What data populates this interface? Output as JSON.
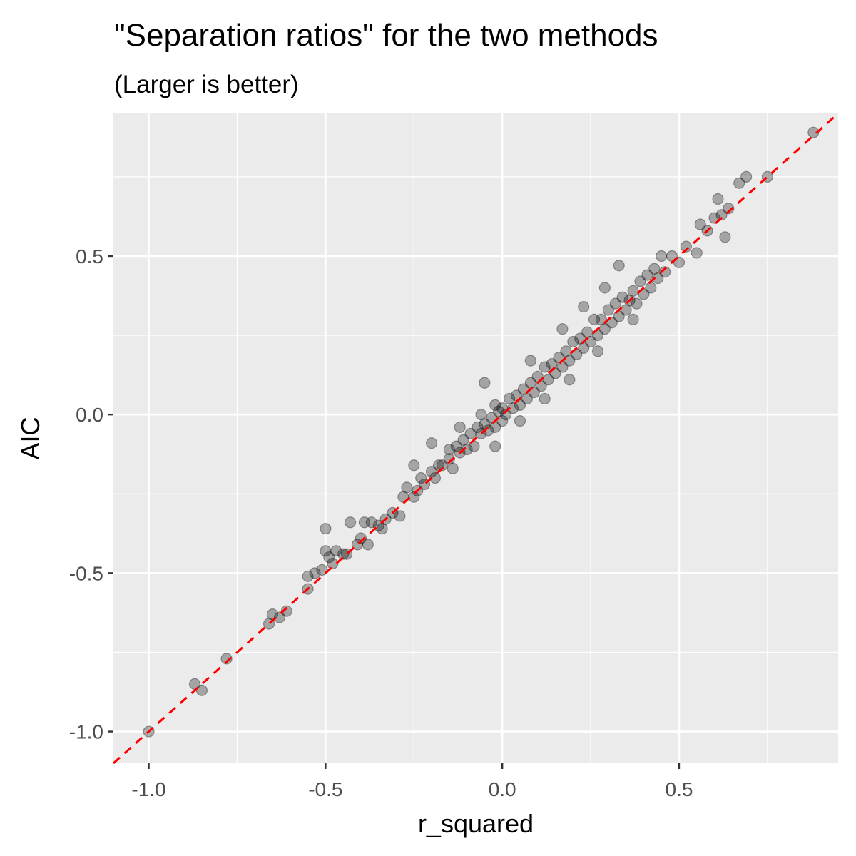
{
  "chart_data": {
    "type": "scatter",
    "title": "\"Separation ratios\" for the two methods",
    "subtitle": "(Larger is better)",
    "xlabel": "r_squared",
    "ylabel": "AIC",
    "xlim": [
      -1.1,
      0.95
    ],
    "ylim": [
      -1.1,
      0.95
    ],
    "x_ticks": [
      -1.0,
      -0.5,
      0.0,
      0.5
    ],
    "x_tick_labels": [
      "-1.0",
      "-0.5",
      "0.0",
      "0.5"
    ],
    "y_ticks": [
      -1.0,
      -0.5,
      0.0,
      0.5
    ],
    "y_tick_labels": [
      "-1.0",
      "-0.5",
      "0.0",
      "0.5"
    ],
    "x_minor": [
      -0.75,
      -0.25,
      0.25,
      0.75
    ],
    "y_minor": [
      -0.75,
      -0.25,
      0.25,
      0.75
    ],
    "grid": true,
    "reference_line": {
      "slope": 1,
      "intercept": 0,
      "style": "dashed",
      "color": "#ff0000"
    },
    "point_color": "#000000",
    "point_alpha": 0.3,
    "panel_background": "#ebebeb",
    "series": [
      {
        "name": "separation ratios",
        "points": [
          [
            -1.0,
            -1.0
          ],
          [
            -0.87,
            -0.85
          ],
          [
            -0.85,
            -0.87
          ],
          [
            -0.78,
            -0.77
          ],
          [
            -0.66,
            -0.66
          ],
          [
            -0.65,
            -0.63
          ],
          [
            -0.63,
            -0.64
          ],
          [
            -0.61,
            -0.62
          ],
          [
            -0.55,
            -0.55
          ],
          [
            -0.55,
            -0.51
          ],
          [
            -0.53,
            -0.5
          ],
          [
            -0.51,
            -0.49
          ],
          [
            -0.5,
            -0.36
          ],
          [
            -0.5,
            -0.43
          ],
          [
            -0.49,
            -0.45
          ],
          [
            -0.48,
            -0.47
          ],
          [
            -0.47,
            -0.43
          ],
          [
            -0.45,
            -0.44
          ],
          [
            -0.44,
            -0.44
          ],
          [
            -0.43,
            -0.34
          ],
          [
            -0.41,
            -0.41
          ],
          [
            -0.4,
            -0.39
          ],
          [
            -0.39,
            -0.34
          ],
          [
            -0.38,
            -0.41
          ],
          [
            -0.37,
            -0.34
          ],
          [
            -0.35,
            -0.35
          ],
          [
            -0.34,
            -0.36
          ],
          [
            -0.33,
            -0.33
          ],
          [
            -0.31,
            -0.31
          ],
          [
            -0.29,
            -0.32
          ],
          [
            -0.28,
            -0.26
          ],
          [
            -0.27,
            -0.23
          ],
          [
            -0.25,
            -0.26
          ],
          [
            -0.25,
            -0.16
          ],
          [
            -0.24,
            -0.24
          ],
          [
            -0.23,
            -0.2
          ],
          [
            -0.22,
            -0.22
          ],
          [
            -0.2,
            -0.18
          ],
          [
            -0.2,
            -0.09
          ],
          [
            -0.19,
            -0.2
          ],
          [
            -0.18,
            -0.16
          ],
          [
            -0.17,
            -0.16
          ],
          [
            -0.15,
            -0.14
          ],
          [
            -0.15,
            -0.11
          ],
          [
            -0.14,
            -0.17
          ],
          [
            -0.13,
            -0.1
          ],
          [
            -0.12,
            -0.12
          ],
          [
            -0.11,
            -0.08
          ],
          [
            -0.1,
            -0.11
          ],
          [
            -0.09,
            -0.06
          ],
          [
            -0.08,
            -0.1
          ],
          [
            -0.07,
            -0.04
          ],
          [
            -0.06,
            0.0
          ],
          [
            -0.06,
            -0.06
          ],
          [
            -0.05,
            -0.03
          ],
          [
            -0.04,
            -0.05
          ],
          [
            -0.03,
            -0.01
          ],
          [
            -0.02,
            0.03
          ],
          [
            -0.02,
            -0.04
          ],
          [
            -0.01,
            0.01
          ],
          [
            0.0,
            0.02
          ],
          [
            0.0,
            -0.02
          ],
          [
            0.01,
            0.0
          ],
          [
            0.02,
            0.05
          ],
          [
            0.03,
            0.02
          ],
          [
            0.04,
            0.06
          ],
          [
            0.05,
            0.03
          ],
          [
            0.06,
            0.08
          ],
          [
            0.07,
            0.05
          ],
          [
            0.08,
            0.1
          ],
          [
            0.09,
            0.07
          ],
          [
            0.1,
            0.12
          ],
          [
            0.11,
            0.09
          ],
          [
            0.12,
            0.15
          ],
          [
            0.13,
            0.11
          ],
          [
            0.14,
            0.16
          ],
          [
            0.15,
            0.13
          ],
          [
            0.16,
            0.18
          ],
          [
            0.17,
            0.15
          ],
          [
            0.18,
            0.2
          ],
          [
            0.19,
            0.17
          ],
          [
            0.2,
            0.23
          ],
          [
            0.21,
            0.19
          ],
          [
            0.22,
            0.24
          ],
          [
            0.23,
            0.21
          ],
          [
            0.24,
            0.26
          ],
          [
            0.25,
            0.23
          ],
          [
            0.26,
            0.3
          ],
          [
            0.27,
            0.25
          ],
          [
            0.28,
            0.3
          ],
          [
            0.29,
            0.27
          ],
          [
            0.3,
            0.33
          ],
          [
            0.31,
            0.29
          ],
          [
            0.32,
            0.35
          ],
          [
            0.33,
            0.31
          ],
          [
            0.34,
            0.37
          ],
          [
            0.35,
            0.33
          ],
          [
            0.36,
            0.36
          ],
          [
            0.37,
            0.39
          ],
          [
            0.38,
            0.35
          ],
          [
            0.39,
            0.42
          ],
          [
            0.4,
            0.38
          ],
          [
            0.41,
            0.44
          ],
          [
            0.42,
            0.4
          ],
          [
            0.43,
            0.46
          ],
          [
            0.44,
            0.43
          ],
          [
            0.45,
            0.5
          ],
          [
            0.46,
            0.45
          ],
          [
            0.48,
            0.5
          ],
          [
            0.5,
            0.48
          ],
          [
            0.52,
            0.53
          ],
          [
            0.55,
            0.51
          ],
          [
            0.56,
            0.6
          ],
          [
            0.58,
            0.58
          ],
          [
            0.6,
            0.62
          ],
          [
            0.61,
            0.68
          ],
          [
            0.62,
            0.63
          ],
          [
            0.63,
            0.56
          ],
          [
            0.64,
            0.65
          ],
          [
            0.67,
            0.73
          ],
          [
            0.69,
            0.75
          ],
          [
            0.75,
            0.75
          ],
          [
            0.88,
            0.89
          ],
          [
            0.33,
            0.47
          ],
          [
            0.37,
            0.3
          ],
          [
            -0.05,
            0.1
          ],
          [
            0.08,
            0.17
          ],
          [
            0.17,
            0.27
          ],
          [
            0.23,
            0.34
          ],
          [
            0.29,
            0.4
          ],
          [
            -0.12,
            -0.04
          ],
          [
            0.12,
            0.05
          ],
          [
            0.19,
            0.11
          ],
          [
            0.27,
            0.2
          ],
          [
            -0.02,
            -0.1
          ],
          [
            0.05,
            -0.02
          ]
        ]
      }
    ]
  }
}
